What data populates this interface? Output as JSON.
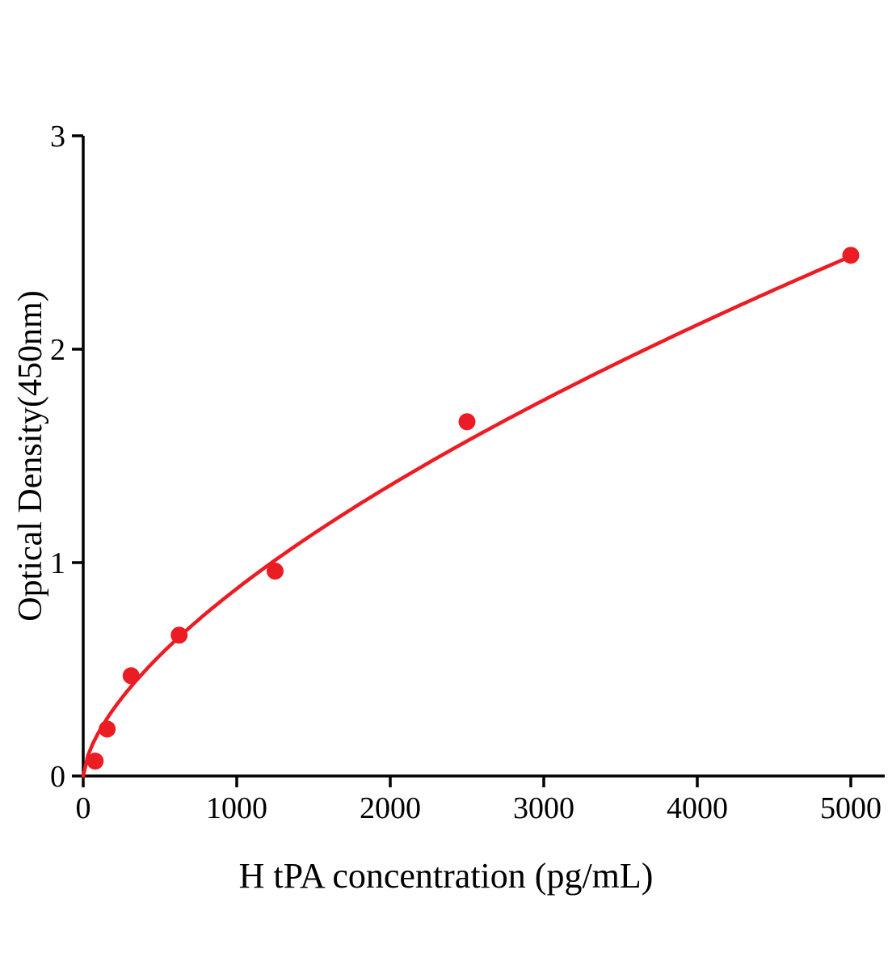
{
  "figure": {
    "background": "#ffffff"
  },
  "chart_data": {
    "type": "scatter",
    "title": "",
    "xlabel": "H tPA concentration (pg/mL)",
    "ylabel": "Optical Density(450nm)",
    "x": [
      78,
      156,
      312,
      625,
      1250,
      2500,
      5000
    ],
    "y": [
      0.07,
      0.22,
      0.47,
      0.66,
      0.96,
      1.66,
      2.44
    ],
    "xticks": [
      0,
      1000,
      2000,
      3000,
      4000,
      5000
    ],
    "yticks": [
      0,
      1,
      2,
      3
    ],
    "xlim": [
      0,
      5220
    ],
    "ylim": [
      0,
      3
    ],
    "grid": false,
    "legend": false,
    "marker_color": "#ec1c24",
    "line_color": "#ec1c24",
    "axis_color": "#000000",
    "fit": {
      "type": "power",
      "a": 0.011,
      "b": 0.634
    }
  }
}
